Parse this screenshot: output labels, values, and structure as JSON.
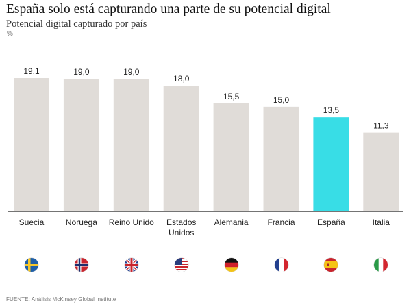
{
  "chart_data": {
    "type": "bar",
    "title": "España solo está capturando una parte de su potencial digital",
    "subtitle": "Potencial digital capturado por país",
    "unit": "%",
    "categories": [
      "Suecia",
      "Noruega",
      "Reino Unido",
      "Estados Unidos",
      "Alemania",
      "Francia",
      "España",
      "Italia"
    ],
    "category_lines": [
      [
        "Suecia"
      ],
      [
        "Noruega"
      ],
      [
        "Reino Unido"
      ],
      [
        "Estados",
        "Unidos"
      ],
      [
        "Alemania"
      ],
      [
        "Francia"
      ],
      [
        "España"
      ],
      [
        "Italia"
      ]
    ],
    "values": [
      19.1,
      19.0,
      19.0,
      18.0,
      15.5,
      15.0,
      13.5,
      11.3
    ],
    "value_labels": [
      "19,1",
      "19,0",
      "19,0",
      "18,0",
      "15,5",
      "15,0",
      "13,5",
      "11,3"
    ],
    "ylim": [
      0,
      20
    ],
    "grid": false,
    "colors": {
      "default": "#e0dcd8",
      "highlight": "#38dde6",
      "axis": "#222222"
    },
    "highlight_category": "España",
    "flags": [
      "sweden-flag-icon",
      "norway-flag-icon",
      "uk-flag-icon",
      "usa-flag-icon",
      "germany-flag-icon",
      "france-flag-icon",
      "spain-flag-icon",
      "italy-flag-icon"
    ]
  },
  "source": "FUENTE: Análisis McKinsey Global Institute"
}
